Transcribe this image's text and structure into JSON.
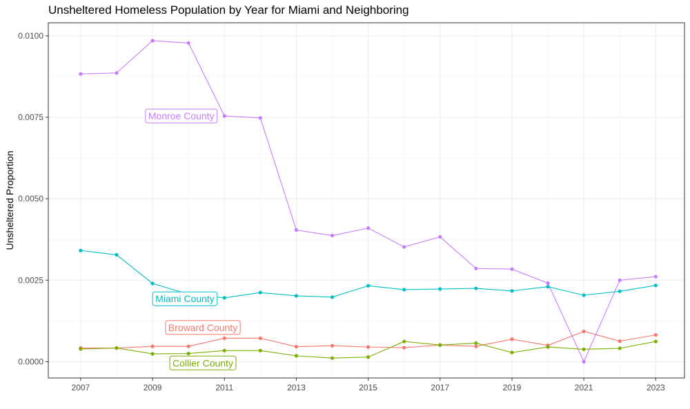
{
  "chart_data": {
    "type": "line",
    "title": "Unsheltered Homeless Population by Year for Miami and Neighboring",
    "xlabel": "",
    "ylabel": "Unsheltered Proportion",
    "x": [
      2007,
      2008,
      2009,
      2010,
      2011,
      2012,
      2013,
      2014,
      2015,
      2016,
      2017,
      2018,
      2019,
      2020,
      2021,
      2022,
      2023
    ],
    "x_ticks": [
      "2007",
      "2009",
      "2011",
      "2013",
      "2015",
      "2017",
      "2019",
      "2021",
      "2023"
    ],
    "y_ticks": [
      "0.0000",
      "0.0025",
      "0.0050",
      "0.0075",
      "0.0100"
    ],
    "xlim": [
      2006.1,
      2023.8
    ],
    "ylim": [
      -0.0005,
      0.0104
    ],
    "grid": true,
    "legend": "direct labels on lines",
    "series": [
      {
        "name": "Monroe County",
        "color": "#C77CFF",
        "values": [
          0.00883,
          0.00886,
          0.00985,
          0.00978,
          0.00754,
          0.00748,
          0.00404,
          0.00387,
          0.0041,
          0.00352,
          0.00383,
          0.00286,
          0.00284,
          0.00241,
          0.0,
          0.0025,
          0.00261
        ],
        "label_at": [
          2009.8,
          0.00754
        ]
      },
      {
        "name": "Miami County",
        "color": "#00BFC4",
        "values": [
          0.00341,
          0.00328,
          0.0024,
          0.00207,
          0.00196,
          0.00212,
          0.00202,
          0.00198,
          0.00233,
          0.00221,
          0.00223,
          0.00225,
          0.00217,
          0.0023,
          0.00204,
          0.00216,
          0.00234
        ],
        "label_at": [
          2009.9,
          0.00193
        ]
      },
      {
        "name": "Broward County",
        "color": "#F8766D",
        "values": [
          0.00042,
          0.00042,
          0.00047,
          0.00047,
          0.00072,
          0.00072,
          0.00046,
          0.00049,
          0.00045,
          0.00043,
          0.00051,
          0.00047,
          0.00069,
          0.0005,
          0.00093,
          0.00063,
          0.00082
        ],
        "label_at": [
          2010.4,
          0.00105
        ]
      },
      {
        "name": "Collier County",
        "color": "#7CAE00",
        "values": [
          0.00039,
          0.00042,
          0.00024,
          0.00025,
          0.00034,
          0.00034,
          0.00018,
          0.00011,
          0.00014,
          0.00062,
          0.00051,
          0.00057,
          0.00028,
          0.00045,
          0.00038,
          0.00041,
          0.00062
        ],
        "label_at": [
          2010.4,
          -4e-05
        ]
      }
    ]
  }
}
